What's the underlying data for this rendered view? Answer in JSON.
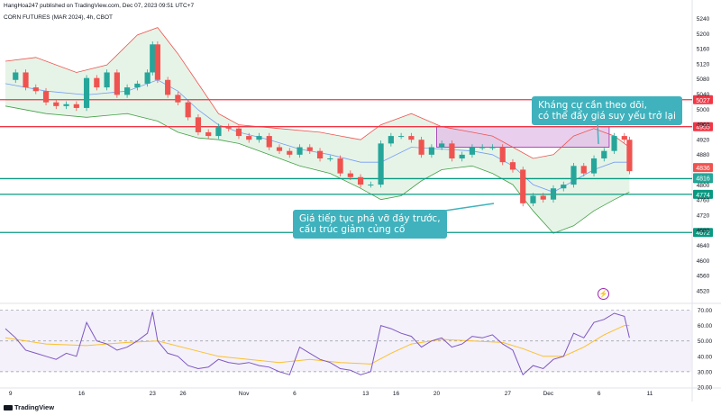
{
  "header": {
    "published_line": "HangHoa247 published on TradingView.com, Dec 07, 2023 09:51 UTC+7",
    "symbol_line": "CORN FUTURES (MAR 2024), 4h, CBOT"
  },
  "annotations": {
    "resistance_note_line1": "Kháng cự cần theo dõi,",
    "resistance_note_line2": "có thể đẩy giá suy yếu trở lại",
    "break_note_line1": "Giá tiếp tục phá vỡ đáy trước,",
    "break_note_line2": "cấu trúc giảm củng cố"
  },
  "brand": "TradingView",
  "colors": {
    "up": "#26a69a",
    "down": "#ef5350",
    "resistance": "#f23645",
    "support": "#089981",
    "band": "#c8e6c9",
    "zone": "#e1bee7",
    "rsi": "#7e57c2",
    "rsi_ma": "#fbc02d"
  },
  "chart_data": [
    {
      "type": "candlestick",
      "ylim": [
        4480,
        5260
      ],
      "y_ticks": [
        "5240",
        "5200",
        "5160",
        "5120",
        "5080",
        "5040",
        "5000",
        "4960",
        "4920",
        "4880",
        "4840",
        "4800",
        "4760",
        "4720",
        "4680",
        "4640",
        "4600",
        "4560",
        "4520"
      ],
      "x_ticks": [
        "9",
        "16",
        "23",
        "26",
        "Nov",
        "6",
        "13",
        "16",
        "20",
        "27",
        "Dec",
        "6",
        "11"
      ],
      "x_tick_days": [
        9,
        16,
        23,
        26,
        32,
        37,
        44,
        47,
        51,
        58,
        62,
        67,
        72
      ],
      "x_day_range": [
        8.5,
        76
      ],
      "horizontal_levels": [
        {
          "value": 5027,
          "label": "5027",
          "role": "resistance"
        },
        {
          "value": 4955,
          "label": "4955",
          "role": "resistance"
        },
        {
          "value": 4816,
          "label": "4816",
          "role": "support"
        },
        {
          "value": 4774,
          "label": "4774",
          "role": "support"
        },
        {
          "value": 4672,
          "label": "4672",
          "role": "support"
        }
      ],
      "last_price_labels": [
        {
          "value": 4836,
          "label": "4836",
          "role": "down"
        },
        {
          "value": 4816,
          "label": "4816",
          "role": "up"
        }
      ],
      "zone": {
        "day_from": 51,
        "day_to": 68,
        "price_from": 4900,
        "price_to": 4955
      },
      "close_path": [
        [
          8.5,
          5080
        ],
        [
          9.5,
          5100
        ],
        [
          10.5,
          5060
        ],
        [
          11.5,
          5050
        ],
        [
          12.5,
          5020
        ],
        [
          13.5,
          5010
        ],
        [
          14.5,
          5015
        ],
        [
          15.5,
          5005
        ],
        [
          16.5,
          5085
        ],
        [
          17.5,
          5060
        ],
        [
          18.5,
          5100
        ],
        [
          19.5,
          5040
        ],
        [
          20.5,
          5060
        ],
        [
          21.5,
          5070
        ],
        [
          22.5,
          5100
        ],
        [
          23,
          5175
        ],
        [
          23.5,
          5080
        ],
        [
          24.5,
          5040
        ],
        [
          25.5,
          5020
        ],
        [
          26.5,
          4980
        ],
        [
          27.5,
          4940
        ],
        [
          28.5,
          4930
        ],
        [
          29.5,
          4955
        ],
        [
          30.5,
          4950
        ],
        [
          31.5,
          4930
        ],
        [
          32.5,
          4920
        ],
        [
          33.5,
          4930
        ],
        [
          34.5,
          4900
        ],
        [
          35.5,
          4890
        ],
        [
          36.5,
          4880
        ],
        [
          37.5,
          4900
        ],
        [
          38.5,
          4890
        ],
        [
          39.5,
          4870
        ],
        [
          40.5,
          4870
        ],
        [
          41.5,
          4830
        ],
        [
          42.5,
          4820
        ],
        [
          43.5,
          4800
        ],
        [
          44.5,
          4800
        ],
        [
          45.5,
          4910
        ],
        [
          46.5,
          4930
        ],
        [
          47.5,
          4930
        ],
        [
          48.5,
          4920
        ],
        [
          49.5,
          4880
        ],
        [
          50.5,
          4900
        ],
        [
          51.5,
          4910
        ],
        [
          52.5,
          4870
        ],
        [
          53.5,
          4880
        ],
        [
          54.5,
          4900
        ],
        [
          55.5,
          4900
        ],
        [
          56.5,
          4900
        ],
        [
          57.5,
          4860
        ],
        [
          58.5,
          4840
        ],
        [
          59.5,
          4750
        ],
        [
          60.5,
          4770
        ],
        [
          61.5,
          4760
        ],
        [
          62.5,
          4790
        ],
        [
          63.5,
          4800
        ],
        [
          64.5,
          4850
        ],
        [
          65.5,
          4830
        ],
        [
          66.5,
          4870
        ],
        [
          67.5,
          4890
        ],
        [
          68.5,
          4930
        ],
        [
          69.5,
          4920
        ],
        [
          70,
          4836
        ]
      ],
      "bollinger": {
        "upper": [
          [
            8.5,
            5130
          ],
          [
            11.5,
            5140
          ],
          [
            15.5,
            5100
          ],
          [
            18.5,
            5120
          ],
          [
            21.5,
            5200
          ],
          [
            23.5,
            5220
          ],
          [
            25.5,
            5150
          ],
          [
            27.5,
            5070
          ],
          [
            29.5,
            4990
          ],
          [
            31.5,
            4960
          ],
          [
            35.5,
            4950
          ],
          [
            39.5,
            4940
          ],
          [
            43.5,
            4920
          ],
          [
            45.5,
            4960
          ],
          [
            48.5,
            4990
          ],
          [
            51.5,
            4955
          ],
          [
            54.5,
            4940
          ],
          [
            56.5,
            4930
          ],
          [
            58.5,
            4900
          ],
          [
            60.5,
            4870
          ],
          [
            62.5,
            4880
          ],
          [
            64.5,
            4930
          ],
          [
            66.5,
            4950
          ],
          [
            68.5,
            4930
          ],
          [
            70,
            4900
          ]
        ],
        "middle": [
          [
            8.5,
            5070
          ],
          [
            12.5,
            5050
          ],
          [
            16.5,
            5040
          ],
          [
            20.5,
            5050
          ],
          [
            23.5,
            5080
          ],
          [
            25.5,
            5050
          ],
          [
            27.5,
            5000
          ],
          [
            29.5,
            4960
          ],
          [
            31.5,
            4940
          ],
          [
            34.5,
            4920
          ],
          [
            37.5,
            4895
          ],
          [
            40.5,
            4880
          ],
          [
            43.5,
            4860
          ],
          [
            45.5,
            4860
          ],
          [
            48.5,
            4900
          ],
          [
            51.5,
            4895
          ],
          [
            54.5,
            4890
          ],
          [
            56.5,
            4880
          ],
          [
            58.5,
            4850
          ],
          [
            60.5,
            4800
          ],
          [
            62.5,
            4780
          ],
          [
            64.5,
            4810
          ],
          [
            66.5,
            4840
          ],
          [
            68.5,
            4860
          ],
          [
            70,
            4860
          ]
        ],
        "lower": [
          [
            8.5,
            5010
          ],
          [
            12.5,
            4990
          ],
          [
            16.5,
            4980
          ],
          [
            20.5,
            4990
          ],
          [
            23.5,
            4970
          ],
          [
            25.5,
            4940
          ],
          [
            27.5,
            4925
          ],
          [
            29.5,
            4920
          ],
          [
            31.5,
            4910
          ],
          [
            34.5,
            4880
          ],
          [
            37.5,
            4850
          ],
          [
            40.5,
            4830
          ],
          [
            43.5,
            4790
          ],
          [
            45.5,
            4760
          ],
          [
            47.5,
            4770
          ],
          [
            49.5,
            4810
          ],
          [
            51.5,
            4840
          ],
          [
            54.5,
            4850
          ],
          [
            56.5,
            4830
          ],
          [
            58.5,
            4800
          ],
          [
            60.5,
            4730
          ],
          [
            62.5,
            4670
          ],
          [
            64.5,
            4690
          ],
          [
            66.5,
            4730
          ],
          [
            68.5,
            4760
          ],
          [
            70,
            4780
          ]
        ]
      }
    },
    {
      "type": "line",
      "indicator": "RSI",
      "ylim": [
        20,
        75
      ],
      "y_ticks": [
        "70.00",
        "60.00",
        "50.00",
        "40.00",
        "30.00",
        "20.00"
      ],
      "bands": [
        30,
        70
      ],
      "midline": 50,
      "series": [
        {
          "role": "rsi",
          "values": [
            [
              8.5,
              58
            ],
            [
              9.5,
              52
            ],
            [
              10.5,
              44
            ],
            [
              11.5,
              42
            ],
            [
              12.5,
              40
            ],
            [
              13.5,
              38
            ],
            [
              14.5,
              42
            ],
            [
              15.5,
              40
            ],
            [
              16.5,
              62
            ],
            [
              17.5,
              50
            ],
            [
              18.5,
              48
            ],
            [
              19.5,
              44
            ],
            [
              20.5,
              46
            ],
            [
              21.5,
              50
            ],
            [
              22.5,
              55
            ],
            [
              23,
              69
            ],
            [
              23.5,
              50
            ],
            [
              24.5,
              42
            ],
            [
              25.5,
              40
            ],
            [
              26.5,
              34
            ],
            [
              27.5,
              32
            ],
            [
              28.5,
              33
            ],
            [
              29.5,
              38
            ],
            [
              30.5,
              36
            ],
            [
              31.5,
              35
            ],
            [
              32.5,
              36
            ],
            [
              33.5,
              34
            ],
            [
              34.5,
              33
            ],
            [
              35.5,
              30
            ],
            [
              36.5,
              28
            ],
            [
              37.5,
              46
            ],
            [
              38.5,
              42
            ],
            [
              39.5,
              38
            ],
            [
              40.5,
              36
            ],
            [
              41.5,
              32
            ],
            [
              42.5,
              31
            ],
            [
              43.5,
              28
            ],
            [
              44.5,
              30
            ],
            [
              45.5,
              60
            ],
            [
              46.5,
              58
            ],
            [
              47.5,
              55
            ],
            [
              48.5,
              53
            ],
            [
              49.5,
              46
            ],
            [
              50.5,
              50
            ],
            [
              51.5,
              52
            ],
            [
              52.5,
              46
            ],
            [
              53.5,
              48
            ],
            [
              54.5,
              53
            ],
            [
              55.5,
              52
            ],
            [
              56.5,
              54
            ],
            [
              57.5,
              48
            ],
            [
              58.5,
              44
            ],
            [
              59.5,
              28
            ],
            [
              60.5,
              34
            ],
            [
              61.5,
              32
            ],
            [
              62.5,
              38
            ],
            [
              63.5,
              40
            ],
            [
              64.5,
              55
            ],
            [
              65.5,
              52
            ],
            [
              66.5,
              62
            ],
            [
              67.5,
              64
            ],
            [
              68.5,
              68
            ],
            [
              69.5,
              66
            ],
            [
              70,
              52
            ]
          ]
        },
        {
          "role": "rsi_ma",
          "values": [
            [
              8.5,
              52
            ],
            [
              12.5,
              48
            ],
            [
              16.5,
              47
            ],
            [
              20.5,
              49
            ],
            [
              23.5,
              50
            ],
            [
              26.5,
              45
            ],
            [
              29.5,
              40
            ],
            [
              32.5,
              38
            ],
            [
              35.5,
              36
            ],
            [
              38.5,
              38
            ],
            [
              41.5,
              36
            ],
            [
              44.5,
              35
            ],
            [
              46.5,
              42
            ],
            [
              48.5,
              48
            ],
            [
              51.5,
              51
            ],
            [
              54.5,
              50
            ],
            [
              57.5,
              49
            ],
            [
              59.5,
              45
            ],
            [
              61.5,
              40
            ],
            [
              63.5,
              40
            ],
            [
              65.5,
              46
            ],
            [
              67.5,
              54
            ],
            [
              69.5,
              60
            ],
            [
              70,
              60
            ]
          ]
        }
      ]
    }
  ]
}
